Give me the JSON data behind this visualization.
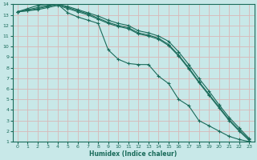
{
  "xlabel": "Humidex (Indice chaleur)",
  "bg_color": "#c8e8e8",
  "grid_color": "#d8b8b8",
  "line_color": "#1a6b5a",
  "xlim": [
    -0.5,
    23.5
  ],
  "ylim": [
    1,
    14
  ],
  "xticks": [
    0,
    1,
    2,
    3,
    4,
    5,
    6,
    7,
    8,
    9,
    10,
    11,
    12,
    13,
    14,
    15,
    16,
    17,
    18,
    19,
    20,
    21,
    22,
    23
  ],
  "yticks": [
    1,
    2,
    3,
    4,
    5,
    6,
    7,
    8,
    9,
    10,
    11,
    12,
    13,
    14
  ],
  "line1_x": [
    0,
    1,
    2,
    3,
    4,
    5,
    6,
    7,
    8,
    9,
    10,
    11,
    12,
    13,
    14,
    15,
    16,
    17,
    18,
    19,
    20,
    21,
    22,
    23
  ],
  "line1_y": [
    13.3,
    13.6,
    13.9,
    14.0,
    14.0,
    13.2,
    12.8,
    12.5,
    12.2,
    9.7,
    8.8,
    8.4,
    8.3,
    8.3,
    7.2,
    6.5,
    5.0,
    4.4,
    3.0,
    2.5,
    2.0,
    1.5,
    1.2,
    1.0
  ],
  "line2_x": [
    0,
    1,
    2,
    3,
    4,
    5,
    6,
    7,
    8,
    9,
    10,
    11,
    12,
    13,
    14,
    15,
    16,
    17,
    18,
    19,
    20,
    21,
    22,
    23
  ],
  "line2_y": [
    13.3,
    13.5,
    13.7,
    13.9,
    14.0,
    13.8,
    13.5,
    13.2,
    12.9,
    12.5,
    12.2,
    12.0,
    11.5,
    11.3,
    11.0,
    10.5,
    9.5,
    8.3,
    7.0,
    5.8,
    4.5,
    3.3,
    2.3,
    1.3
  ],
  "line3_x": [
    0,
    1,
    2,
    3,
    4,
    5,
    6,
    7,
    8,
    9,
    10,
    11,
    12,
    13,
    14,
    15,
    16,
    17,
    18,
    19,
    20,
    21,
    22,
    23
  ],
  "line3_y": [
    13.3,
    13.4,
    13.6,
    13.8,
    14.0,
    13.7,
    13.4,
    13.1,
    12.7,
    12.3,
    12.0,
    11.8,
    11.3,
    11.1,
    10.8,
    10.2,
    9.2,
    8.0,
    6.7,
    5.5,
    4.3,
    3.1,
    2.1,
    1.2
  ],
  "line4_x": [
    0,
    1,
    2,
    3,
    4,
    5,
    6,
    7,
    8,
    9,
    10,
    11,
    12,
    13,
    14,
    15,
    16,
    17,
    18,
    19,
    20,
    21,
    22,
    23
  ],
  "line4_y": [
    13.3,
    13.4,
    13.5,
    13.7,
    13.9,
    13.6,
    13.3,
    13.0,
    12.6,
    12.2,
    11.9,
    11.7,
    11.2,
    11.0,
    10.7,
    10.1,
    9.1,
    7.9,
    6.6,
    5.4,
    4.2,
    3.0,
    2.0,
    1.1
  ]
}
